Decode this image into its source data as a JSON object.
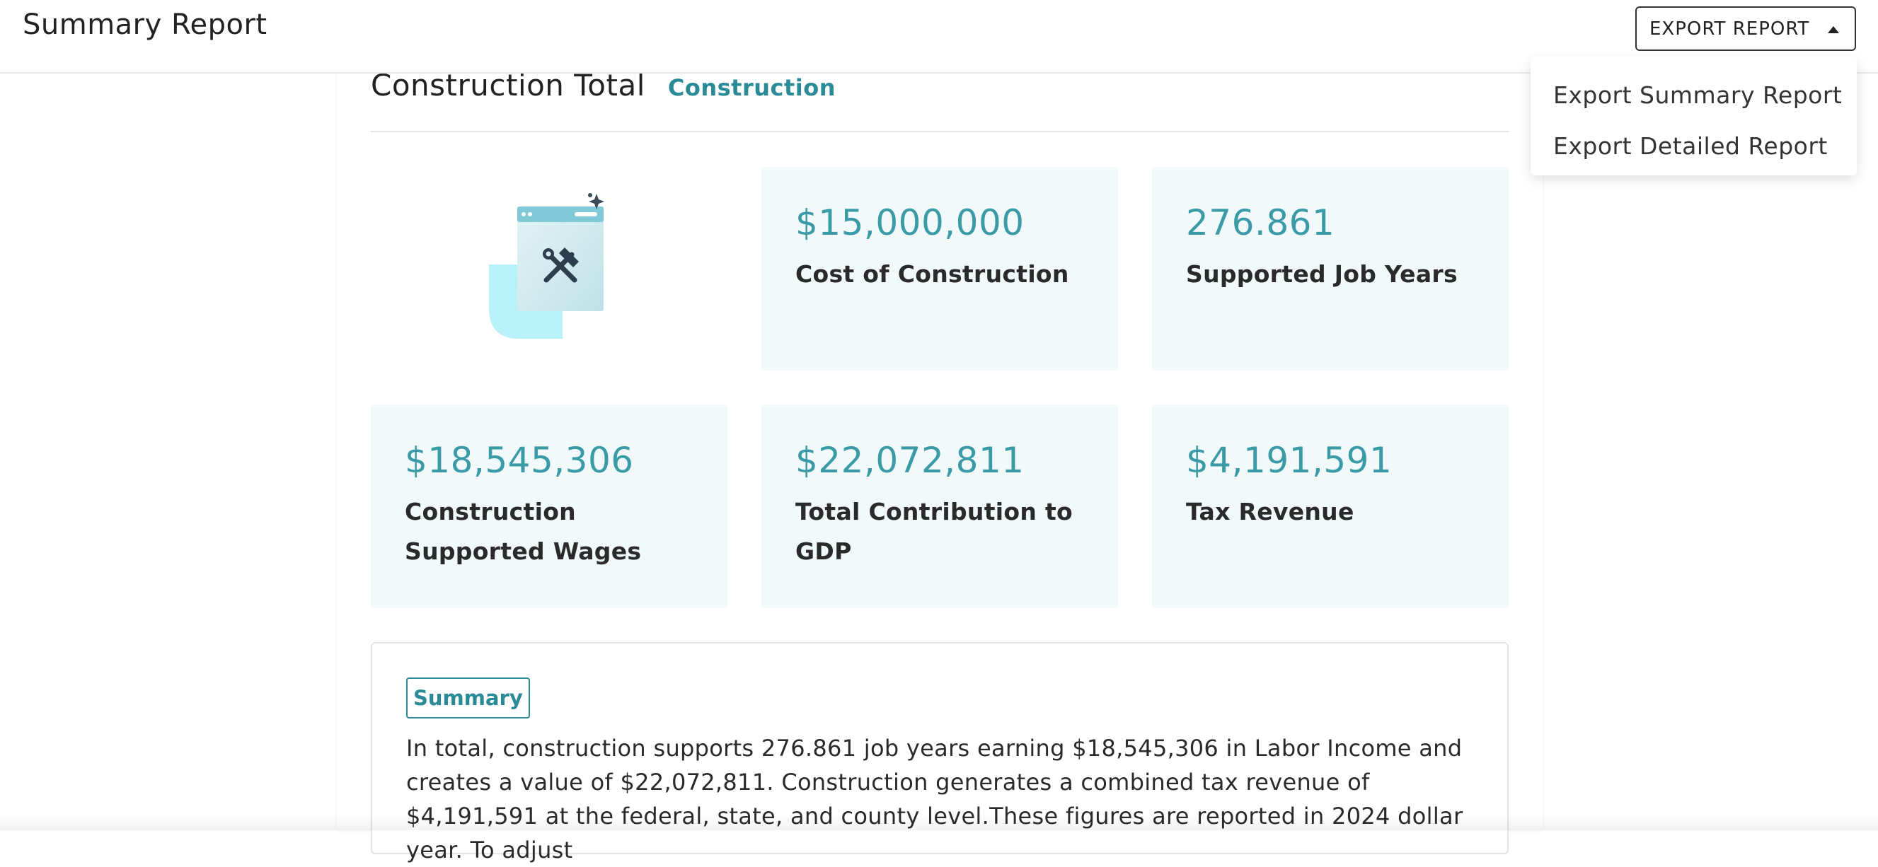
{
  "header": {
    "title": "Summary Report",
    "export_button_label": "EXPORT REPORT",
    "export_menu": [
      {
        "label": "Export Summary Report"
      },
      {
        "label": "Export Detailed Report"
      }
    ]
  },
  "section": {
    "title": "Construction Total",
    "tag": "Construction",
    "illustration_icon": "construction-tools-icon"
  },
  "stats": [
    {
      "value": "$15,000,000",
      "label": "Cost of Construction"
    },
    {
      "value": "276.861",
      "label": "Supported Job Years"
    },
    {
      "value": "$18,545,306",
      "label": "Construction Supported Wages"
    },
    {
      "value": "$22,072,811",
      "label": "Total Contribution to GDP"
    },
    {
      "value": "$4,191,591",
      "label": "Tax Revenue"
    }
  ],
  "summary": {
    "badge": "Summary",
    "text": "In total, construction supports 276.861 job years earning $18,545,306 in Labor Income and creates a value of $22,072,811. Construction generates a combined tax revenue of $4,191,591 at the federal, state, and county level.These figures are reported in 2024 dollar year. To adjust"
  },
  "colors": {
    "accent": "#3a9aa6",
    "accent_dark": "#2a8a95",
    "card_bg": "#f1f9fb"
  }
}
